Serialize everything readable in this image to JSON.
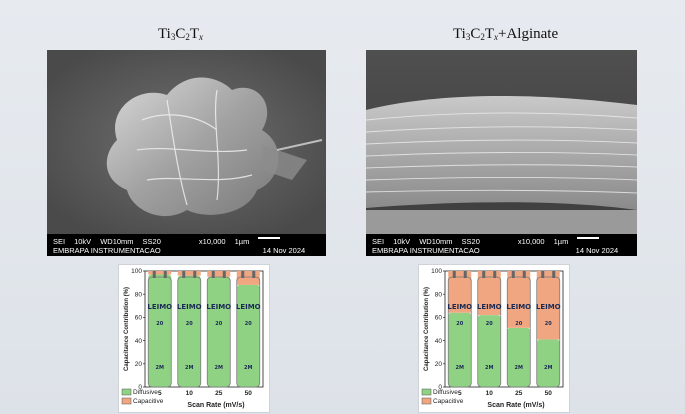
{
  "panels": [
    {
      "title_parts": {
        "a": "Ti",
        "b": "3",
        "c": "C",
        "d": "2",
        "e": "T",
        "f": "x",
        "g": ""
      },
      "sem": {
        "detector": "SEI",
        "voltage": "10kV",
        "wd": "WD10mm",
        "spot": "SS20",
        "magnification": "x10,000",
        "scale": "1µm",
        "date": "14 Nov 2024",
        "org": "EMBRAPA INSTRUMENTACAO"
      },
      "chart_data": {
        "type": "bar",
        "ylabel": "Capacitance Contribution (%)",
        "xlabel": "Scan Rate (mV/s)",
        "categories": [
          "5",
          "10",
          "25",
          "50"
        ],
        "ylim": [
          0,
          100
        ],
        "yticks": [
          "0",
          "20",
          "40",
          "60",
          "80",
          "100"
        ],
        "series": [
          {
            "name": "Diffusive",
            "values": [
              97,
              96,
              95,
              88
            ]
          },
          {
            "name": "Capacitive",
            "values": [
              3,
              4,
              5,
              12
            ]
          }
        ],
        "legend": [
          "Diffusive",
          "Capacitive"
        ],
        "battery_label": "LEIMO",
        "battery_marks": [
          "20",
          "2M"
        ]
      }
    },
    {
      "title_parts": {
        "a": "Ti",
        "b": "3",
        "c": "C",
        "d": "2",
        "e": "T",
        "f": "x",
        "g": "+Alginate"
      },
      "sem": {
        "detector": "SEI",
        "voltage": "10kV",
        "wd": "WD10mm",
        "spot": "SS20",
        "magnification": "x10,000",
        "scale": "1µm",
        "date": "14 Nov 2024",
        "org": "EMBRAPA INSTRUMENTACAO"
      },
      "chart_data": {
        "type": "bar",
        "ylabel": "Capacitance Contribution (%)",
        "xlabel": "Scan Rate (mV/s)",
        "categories": [
          "5",
          "10",
          "25",
          "50"
        ],
        "ylim": [
          0,
          100
        ],
        "yticks": [
          "0",
          "20",
          "40",
          "60",
          "80",
          "100"
        ],
        "series": [
          {
            "name": "Diffusive",
            "values": [
              64,
              62,
              51,
              41
            ]
          },
          {
            "name": "Capacitive",
            "values": [
              36,
              38,
              49,
              59
            ]
          }
        ],
        "legend": [
          "Diffusive",
          "Capacitive"
        ],
        "battery_label": "LEIMO",
        "battery_marks": [
          "20",
          "2M"
        ]
      }
    }
  ],
  "colors": {
    "diffusive": "#8fd283",
    "capacitive": "#f0a680",
    "battery_body": "#a7dca0",
    "sem_bg": "#5c5c5c"
  }
}
